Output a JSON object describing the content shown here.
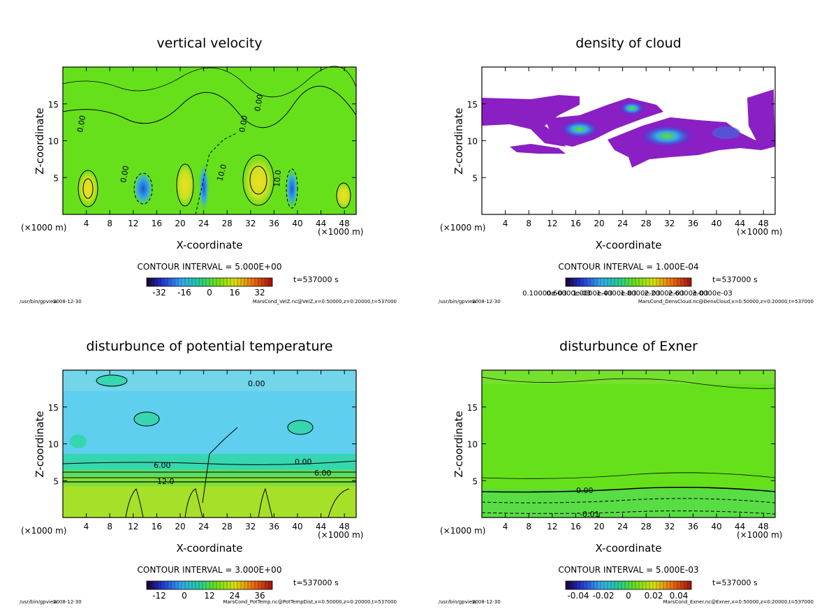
{
  "common": {
    "xlabel": "X-coordinate",
    "ylabel": "Z-coordinate",
    "unit_left": "(×1000 m)",
    "unit_right": "(×1000 m)",
    "xticks": [
      "4",
      "8",
      "12",
      "16",
      "20",
      "24",
      "28",
      "32",
      "36",
      "40",
      "44",
      "48"
    ],
    "yticks": [
      "5",
      "10",
      "15"
    ],
    "program": "/usr/bin/gpview",
    "date": "2008-12-30",
    "time": "t=537000 s"
  },
  "chart_data": [
    {
      "type": "heatmap",
      "title": "vertical velocity",
      "xlabel": "X-coordinate",
      "ylabel": "Z-coordinate",
      "xlim": [
        0,
        50
      ],
      "ylim": [
        0,
        20
      ],
      "contour_interval": "CONTOUR INTERVAL = 5.000E+00",
      "colorbar_ticks": [
        "-32",
        "-16",
        "0",
        "16",
        "32"
      ],
      "contour_labels": [
        "0.00",
        "0.00",
        "0.00",
        "0.00",
        "10.0",
        "10.0"
      ],
      "filename": "MarsCond_VelZ.nc@VelZ,x=0:50000,z=0:20000,t=537000",
      "colors": {
        "background": "#66e01a"
      }
    },
    {
      "type": "heatmap",
      "title": "density of cloud",
      "xlabel": "X-coordinate",
      "ylabel": "Z-coordinate",
      "xlim": [
        0,
        50
      ],
      "ylim": [
        0,
        20
      ],
      "contour_interval": "CONTOUR INTERVAL = 1.000E-04",
      "colorbar_ticks": [
        "0.10000e-03",
        "0.60000e-03",
        "1.0000e-03",
        "1.4000e-03",
        "1.8000e-03",
        "2.2000e-03",
        "2.6000e-03",
        "3.0000e-03"
      ],
      "contour_labels": [],
      "filename": "MarsCond_DensCloud.nc@DensCloud,x=0:50000,z=0:20000,t=537000",
      "colors": {
        "background": "#ffffff",
        "cloud": "#8a1fc4"
      }
    },
    {
      "type": "heatmap",
      "title": "disturbunce of potential temperature",
      "xlabel": "X-coordinate",
      "ylabel": "Z-coordinate",
      "xlim": [
        0,
        50
      ],
      "ylim": [
        0,
        20
      ],
      "contour_interval": "CONTOUR INTERVAL = 3.000E+00",
      "colorbar_ticks": [
        "-12",
        "0",
        "12",
        "24",
        "36"
      ],
      "contour_labels": [
        "0.00",
        "0.00",
        "6.00",
        "6.00",
        "12.0"
      ],
      "filename": "MarsCond_PotTemp.nc@PotTempDist,x=0:50000,z=0:20000,t=537000",
      "colors": {
        "upper": "#5ecfee",
        "lower": "#a6e028"
      }
    },
    {
      "type": "heatmap",
      "title": "disturbunce of Exner",
      "xlabel": "X-coordinate",
      "ylabel": "Z-coordinate",
      "xlim": [
        0,
        50
      ],
      "ylim": [
        0,
        20
      ],
      "contour_interval": "CONTOUR INTERVAL = 5.000E-03",
      "colorbar_ticks": [
        "-0.04",
        "-0.02",
        "0",
        "0.02",
        "0.04"
      ],
      "contour_labels": [
        "0.00",
        "-0.01"
      ],
      "filename": "MarsCond_Exner.nc@Exner,x=0:50000,z=0:20000,t=537000",
      "colors": {
        "background": "#66e01a"
      }
    }
  ]
}
